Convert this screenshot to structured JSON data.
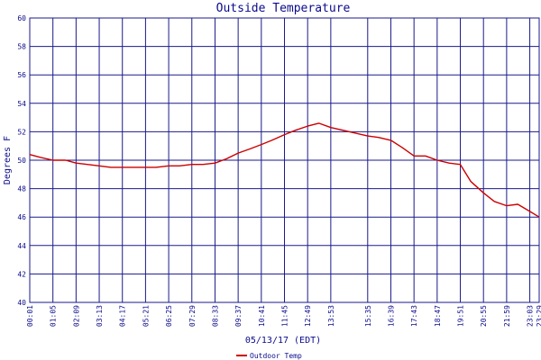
{
  "colors": {
    "grid": "#1a1a8c",
    "text": "#0a0a8c",
    "series": "#cc0000",
    "background": "#ffffff"
  },
  "chart_data": {
    "type": "line",
    "title": "Outside Temperature",
    "xlabel": "05/13/17 (EDT)",
    "ylabel": "Degrees F",
    "ylim": [
      40,
      60
    ],
    "yticks": [
      40,
      42,
      44,
      46,
      48,
      50,
      52,
      54,
      56,
      58,
      60
    ],
    "xticks": [
      "00:01",
      "01:05",
      "02:09",
      "03:13",
      "04:17",
      "05:21",
      "06:25",
      "07:29",
      "08:33",
      "09:37",
      "10:41",
      "11:45",
      "12:49",
      "13:53",
      "15:35",
      "16:39",
      "17:43",
      "18:47",
      "19:51",
      "20:55",
      "21:59",
      "23:03",
      "23:29"
    ],
    "grid": true,
    "legend_position": "bottom-left",
    "series": [
      {
        "name": "Outdoor Temp",
        "x": [
          "00:01",
          "00:30",
          "01:05",
          "01:40",
          "02:09",
          "02:40",
          "03:13",
          "03:45",
          "04:17",
          "04:50",
          "05:21",
          "05:50",
          "06:25",
          "06:55",
          "07:29",
          "08:00",
          "08:33",
          "09:05",
          "09:37",
          "10:10",
          "10:41",
          "11:10",
          "11:45",
          "12:15",
          "12:49",
          "13:20",
          "13:53",
          "14:45",
          "15:35",
          "16:05",
          "16:39",
          "17:10",
          "17:43",
          "18:15",
          "18:47",
          "19:20",
          "19:51",
          "20:20",
          "20:55",
          "21:25",
          "21:59",
          "22:30",
          "23:03",
          "23:29"
        ],
        "values": [
          50.4,
          50.2,
          50.0,
          50.0,
          49.8,
          49.7,
          49.6,
          49.5,
          49.5,
          49.5,
          49.5,
          49.5,
          49.6,
          49.6,
          49.7,
          49.7,
          49.8,
          50.1,
          50.5,
          50.8,
          51.1,
          51.4,
          51.8,
          52.1,
          52.4,
          52.6,
          52.3,
          52.0,
          51.7,
          51.6,
          51.4,
          50.9,
          50.3,
          50.3,
          50.0,
          49.8,
          49.7,
          48.5,
          47.7,
          47.1,
          46.8,
          46.9,
          46.4,
          46.0
        ]
      }
    ]
  }
}
